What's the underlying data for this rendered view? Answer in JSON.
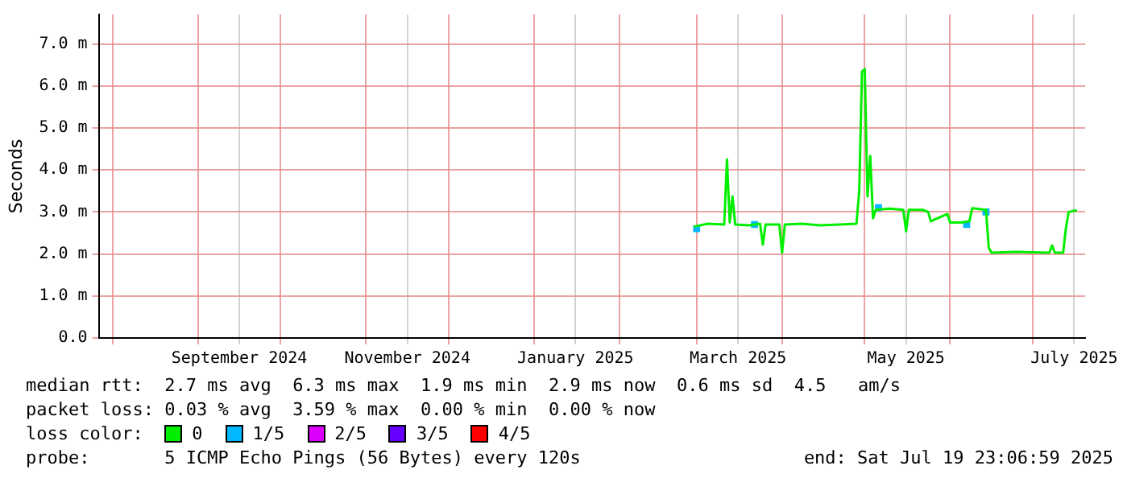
{
  "chart_data": {
    "type": "line",
    "ylabel": "Seconds",
    "legend_title": "loss color:",
    "legend": "bottom",
    "grid": true,
    "marker": "none",
    "xlim": [
      "2024-07-27",
      "2025-07-20"
    ],
    "xticks": [
      {
        "value": "2024-08-01",
        "label": null
      },
      {
        "value": "2024-09-01",
        "label": null
      },
      {
        "value": "2024-09-16",
        "label": "September 2024"
      },
      {
        "value": "2024-10-01",
        "label": null
      },
      {
        "value": "2024-11-01",
        "label": null
      },
      {
        "value": "2024-11-16",
        "label": "November 2024"
      },
      {
        "value": "2024-12-01",
        "label": null
      },
      {
        "value": "2025-01-01",
        "label": null
      },
      {
        "value": "2025-01-16",
        "label": "January 2025"
      },
      {
        "value": "2025-02-01",
        "label": null
      },
      {
        "value": "2025-03-01",
        "label": null
      },
      {
        "value": "2025-03-16",
        "label": "March 2025"
      },
      {
        "value": "2025-04-01",
        "label": null
      },
      {
        "value": "2025-05-01",
        "label": null
      },
      {
        "value": "2025-05-16",
        "label": "May 2025"
      },
      {
        "value": "2025-06-01",
        "label": null
      },
      {
        "value": "2025-07-01",
        "label": null
      },
      {
        "value": "2025-07-16",
        "label": "July 2025"
      }
    ],
    "ylim": [
      0,
      7.7
    ],
    "yticks": [
      {
        "value": 0,
        "label": "0.0"
      },
      {
        "value": 1,
        "label": "1.0 m"
      },
      {
        "value": 2,
        "label": "2.0 m"
      },
      {
        "value": 3,
        "label": "3.0 m"
      },
      {
        "value": 4,
        "label": "4.0 m"
      },
      {
        "value": 5,
        "label": "5.0 m"
      },
      {
        "value": 6,
        "label": "6.0 m"
      },
      {
        "value": 7,
        "label": "7.0 m"
      }
    ],
    "x": [
      "2025-02-28",
      "2025-03-05",
      "2025-03-11",
      "2025-03-12",
      "2025-03-13",
      "2025-03-14",
      "2025-03-15",
      "2025-03-20",
      "2025-03-24",
      "2025-03-25",
      "2025-03-26",
      "2025-03-31",
      "2025-04-01",
      "2025-04-02",
      "2025-04-08",
      "2025-04-15",
      "2025-04-22",
      "2025-04-28",
      "2025-04-29",
      "2025-04-30",
      "2025-05-01",
      "2025-05-02",
      "2025-05-03",
      "2025-05-04",
      "2025-05-05",
      "2025-05-10",
      "2025-05-15",
      "2025-05-16",
      "2025-05-17",
      "2025-05-22",
      "2025-05-24",
      "2025-05-25",
      "2025-05-31",
      "2025-06-01",
      "2025-06-05",
      "2025-06-08",
      "2025-06-09",
      "2025-06-14",
      "2025-06-15",
      "2025-06-16",
      "2025-06-25",
      "2025-07-07",
      "2025-07-08",
      "2025-07-09",
      "2025-07-12",
      "2025-07-13",
      "2025-07-14",
      "2025-07-17"
    ],
    "series": [
      {
        "name": "0",
        "color": "#00ee00",
        "values": [
          2.65,
          2.72,
          2.7,
          4.25,
          2.75,
          3.37,
          2.7,
          2.68,
          2.72,
          2.22,
          2.7,
          2.7,
          2.03,
          2.7,
          2.72,
          2.68,
          2.7,
          2.72,
          3.5,
          6.34,
          6.4,
          3.37,
          4.33,
          2.85,
          3.05,
          3.08,
          3.05,
          2.54,
          3.05,
          3.05,
          3.0,
          2.78,
          2.95,
          2.75,
          2.75,
          2.78,
          3.09,
          3.05,
          2.15,
          2.03,
          2.05,
          2.03,
          2.2,
          2.03,
          2.03,
          2.61,
          3.0,
          3.04
        ]
      },
      {
        "name": "1/5",
        "color": "#00b8ff",
        "type": "scatter",
        "marker": "square",
        "x": [
          "2025-03-01",
          "2025-03-22",
          "2025-05-06",
          "2025-06-07",
          "2025-06-14"
        ],
        "values": [
          2.6,
          2.7,
          3.1,
          2.7,
          3.0
        ]
      },
      {
        "name": "2/5",
        "color": "#dd00ff",
        "values": [
          null,
          null,
          null,
          null,
          null,
          null,
          null,
          null,
          null,
          null,
          null,
          null,
          null,
          null,
          null,
          null,
          null,
          null,
          null,
          null,
          null,
          null,
          null,
          null,
          null,
          null,
          null,
          null,
          null,
          null,
          null,
          null,
          null,
          null,
          null,
          null,
          null,
          null,
          null,
          null,
          null,
          null,
          null,
          null,
          null,
          null,
          null,
          null
        ]
      },
      {
        "name": "3/5",
        "color": "#6600ff",
        "values": [
          null,
          null,
          null,
          null,
          null,
          null,
          null,
          null,
          null,
          null,
          null,
          null,
          null,
          null,
          null,
          null,
          null,
          null,
          null,
          null,
          null,
          null,
          null,
          null,
          null,
          null,
          null,
          null,
          null,
          null,
          null,
          null,
          null,
          null,
          null,
          null,
          null,
          null,
          null,
          null,
          null,
          null,
          null,
          null,
          null,
          null,
          null,
          null
        ]
      },
      {
        "name": "4/5",
        "color": "#ff0000",
        "values": [
          null,
          null,
          null,
          null,
          null,
          null,
          null,
          null,
          null,
          null,
          null,
          null,
          null,
          null,
          null,
          null,
          null,
          null,
          null,
          null,
          null,
          null,
          null,
          null,
          null,
          null,
          null,
          null,
          null,
          null,
          null,
          null,
          null,
          null,
          null,
          null,
          null,
          null,
          null,
          null,
          null,
          null,
          null,
          null,
          null,
          null,
          null,
          null
        ]
      }
    ],
    "annotations": [
      "median rtt:  2.7 ms avg  6.3 ms max  1.9 ms min  2.9 ms now  0.6 ms sd  4.5   am/s",
      "packet loss: 0.03 % avg  3.59 % max  0.00 % min  0.00 % now",
      "probe:       5 ICMP Echo Pings (56 Bytes) every 120s",
      "end: Sat Jul 19 23:06:59 2025"
    ]
  }
}
